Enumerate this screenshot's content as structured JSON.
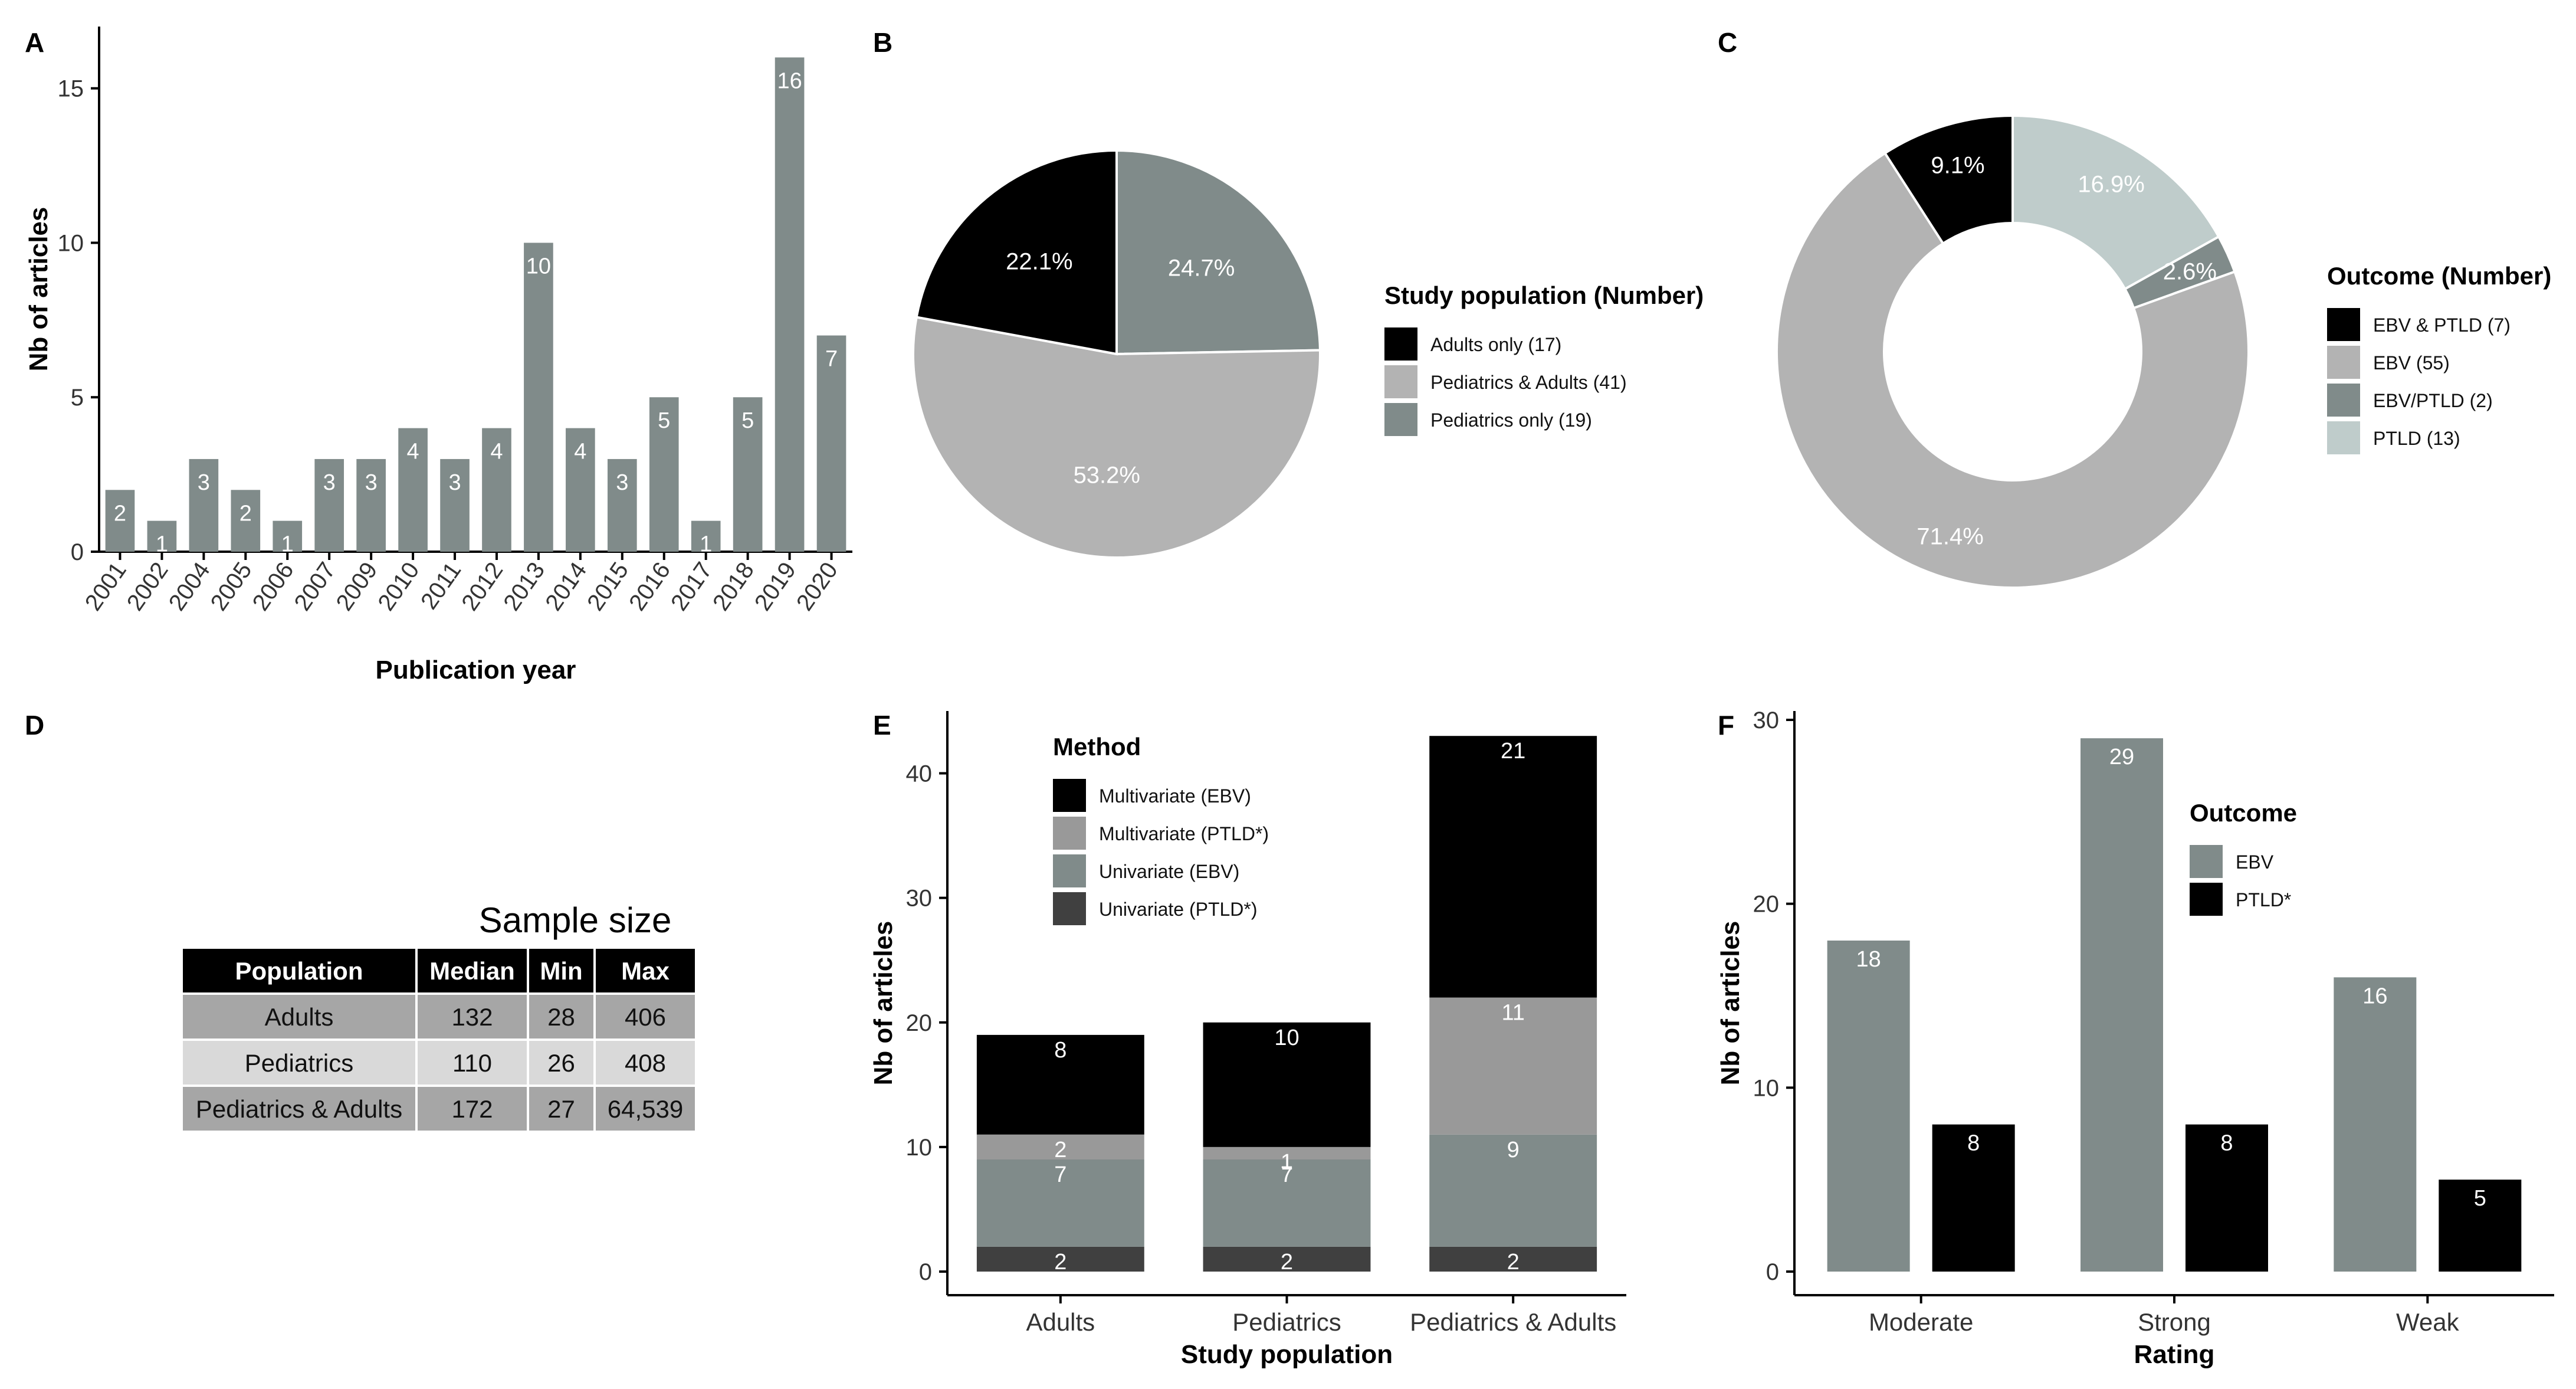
{
  "colors": {
    "black": "#000000",
    "gray": "#808b8a",
    "light_gray": "#b3b3b3",
    "mid_gray": "#999999",
    "dark_gray": "#404040",
    "pale_teal": "#bfcccb",
    "label_white": "#ffffff",
    "table_row1": "#a6a6a6",
    "table_row2": "#d9d9d9"
  },
  "panels": {
    "A": "A",
    "B": "B",
    "C": "C",
    "D": "D",
    "E": "E",
    "F": "F"
  },
  "chart_data": [
    {
      "panel": "A",
      "type": "bar",
      "categories": [
        "2001",
        "2002",
        "2004",
        "2005",
        "2006",
        "2007",
        "2009",
        "2010",
        "2011",
        "2012",
        "2013",
        "2014",
        "2015",
        "2016",
        "2017",
        "2018",
        "2019",
        "2020"
      ],
      "values": [
        2,
        1,
        3,
        2,
        1,
        3,
        3,
        4,
        3,
        4,
        10,
        4,
        3,
        5,
        1,
        5,
        16,
        7
      ],
      "xlabel": "Publication year",
      "ylabel": "Nb of articles",
      "ylim": [
        0,
        17
      ],
      "yticks": [
        0,
        5,
        10,
        15
      ],
      "color": "#808b8a"
    },
    {
      "panel": "B",
      "type": "pie",
      "legend_title": "Study population (Number)",
      "slices": [
        {
          "label": "Pediatrics only (19)",
          "value": 24.7,
          "text": "24.7%",
          "color": "#808b8a"
        },
        {
          "label": "Pediatrics & Adults (41)",
          "value": 53.2,
          "text": "53.2%",
          "color": "#b3b3b3"
        },
        {
          "label": "Adults only (17)",
          "value": 22.1,
          "text": "22.1%",
          "color": "#000000"
        }
      ],
      "legend_order": [
        "Adults only (17)",
        "Pediatrics & Adults (41)",
        "Pediatrics only (19)"
      ]
    },
    {
      "panel": "C",
      "type": "pie",
      "donut": true,
      "legend_title": "Outcome (Number)",
      "slices": [
        {
          "label": "PTLD (13)",
          "value": 16.9,
          "text": "16.9%",
          "color": "#bfcccb"
        },
        {
          "label": "EBV/PTLD (2)",
          "value": 2.6,
          "text": "2.6%",
          "color": "#808b8a"
        },
        {
          "label": "EBV (55)",
          "value": 71.4,
          "text": "71.4%",
          "color": "#b3b3b3"
        },
        {
          "label": "EBV & PTLD (7)",
          "value": 9.1,
          "text": "9.1%",
          "color": "#000000"
        }
      ],
      "legend_order": [
        "EBV & PTLD (7)",
        "EBV (55)",
        "EBV/PTLD (2)",
        "PTLD (13)"
      ]
    },
    {
      "panel": "D",
      "type": "table",
      "title": "Sample size",
      "columns": [
        "Population",
        "Median",
        "Min",
        "Max"
      ],
      "rows": [
        [
          "Adults",
          "132",
          "28",
          "406"
        ],
        [
          "Pediatrics",
          "110",
          "26",
          "408"
        ],
        [
          "Pediatrics & Adults",
          "172",
          "27",
          "64,539"
        ]
      ]
    },
    {
      "panel": "E",
      "type": "bar",
      "stacked": true,
      "categories": [
        "Adults",
        "Pediatrics",
        "Pediatrics & Adults"
      ],
      "legend_title": "Method",
      "series": [
        {
          "name": "Univariate (PTLD*)",
          "values": [
            2,
            2,
            2
          ],
          "color": "#404040"
        },
        {
          "name": "Univariate (EBV)",
          "values": [
            7,
            7,
            9
          ],
          "color": "#808b8a"
        },
        {
          "name": "Multivariate (PTLD*)",
          "values": [
            2,
            1,
            11
          ],
          "color": "#999999"
        },
        {
          "name": "Multivariate (EBV)",
          "values": [
            8,
            10,
            21
          ],
          "color": "#000000"
        }
      ],
      "legend_order": [
        "Multivariate (EBV)",
        "Multivariate (PTLD*)",
        "Univariate (EBV)",
        "Univariate (PTLD*)"
      ],
      "xlabel": "Study population",
      "ylabel": "Nb of articles",
      "ylim": [
        0,
        45
      ],
      "yticks": [
        0,
        10,
        20,
        30,
        40
      ]
    },
    {
      "panel": "F",
      "type": "bar",
      "grouped": true,
      "categories": [
        "Moderate",
        "Strong",
        "Weak"
      ],
      "legend_title": "Outcome",
      "series": [
        {
          "name": "EBV",
          "values": [
            18,
            29,
            16
          ],
          "color": "#808b8a"
        },
        {
          "name": "PTLD*",
          "values": [
            8,
            8,
            5
          ],
          "color": "#000000"
        }
      ],
      "xlabel": "Rating",
      "ylabel": "Nb of articles",
      "ylim": [
        0,
        30
      ],
      "yticks": [
        0,
        10,
        20,
        30
      ]
    }
  ]
}
